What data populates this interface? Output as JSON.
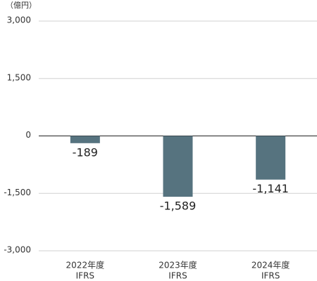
{
  "chart_data": {
    "type": "bar",
    "unit_label": "（億円）",
    "categories": [
      "2022年度",
      "2023年度",
      "2024年度"
    ],
    "category_sublabels": [
      "IFRS",
      "IFRS",
      "IFRS"
    ],
    "values": [
      -189,
      -1589,
      -1141
    ],
    "value_labels": [
      "-189",
      "-1,589",
      "-1,141"
    ],
    "color": "#56737f",
    "ylim": [
      -3000,
      3000
    ],
    "yticks": [
      {
        "value": -3000,
        "label": "-3,000"
      },
      {
        "value": -1500,
        "label": "-1,500"
      },
      0,
      {
        "value": 1500,
        "label": "1,500"
      },
      {
        "value": 3000,
        "label": "3,000"
      }
    ],
    "grid": true
  }
}
